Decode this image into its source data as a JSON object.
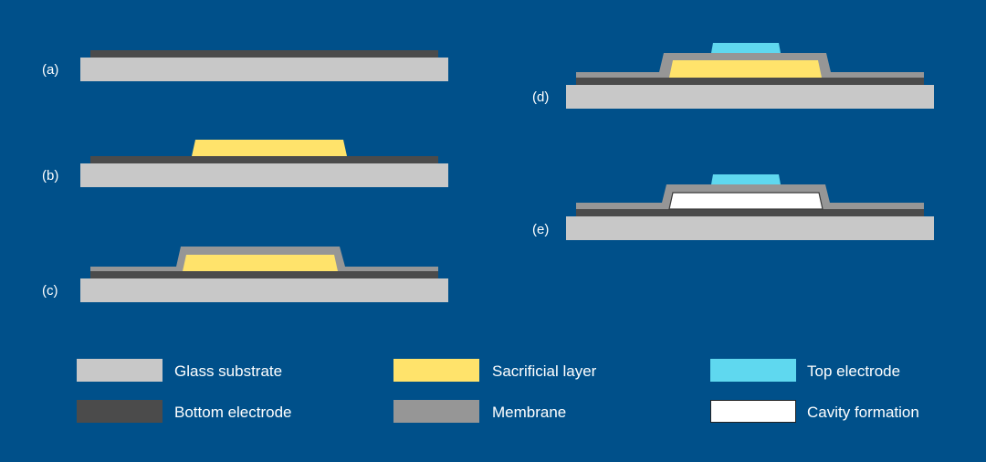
{
  "steps": {
    "a": "(a)",
    "b": "(b)",
    "c": "(c)",
    "d": "(d)",
    "e": "(e)"
  },
  "legend": [
    {
      "label": "Glass substrate",
      "color": "#c8c8c8"
    },
    {
      "label": "Sacrificial layer",
      "color": "#ffe36b"
    },
    {
      "label": "Top electrode",
      "color": "#5fd8ef"
    },
    {
      "label": "Bottom electrode",
      "color": "#4b4b4b"
    },
    {
      "label": "Membrane",
      "color": "#969696"
    },
    {
      "label": "Cavity formation",
      "color": "#ffffff"
    }
  ],
  "colors": {
    "background": "#00508a",
    "substrate": "#c8c8c8",
    "bottom_electrode": "#4b4b4b",
    "membrane": "#969696",
    "sacrificial": "#ffe36b",
    "top_electrode": "#5fd8ef",
    "cavity": "#ffffff"
  }
}
